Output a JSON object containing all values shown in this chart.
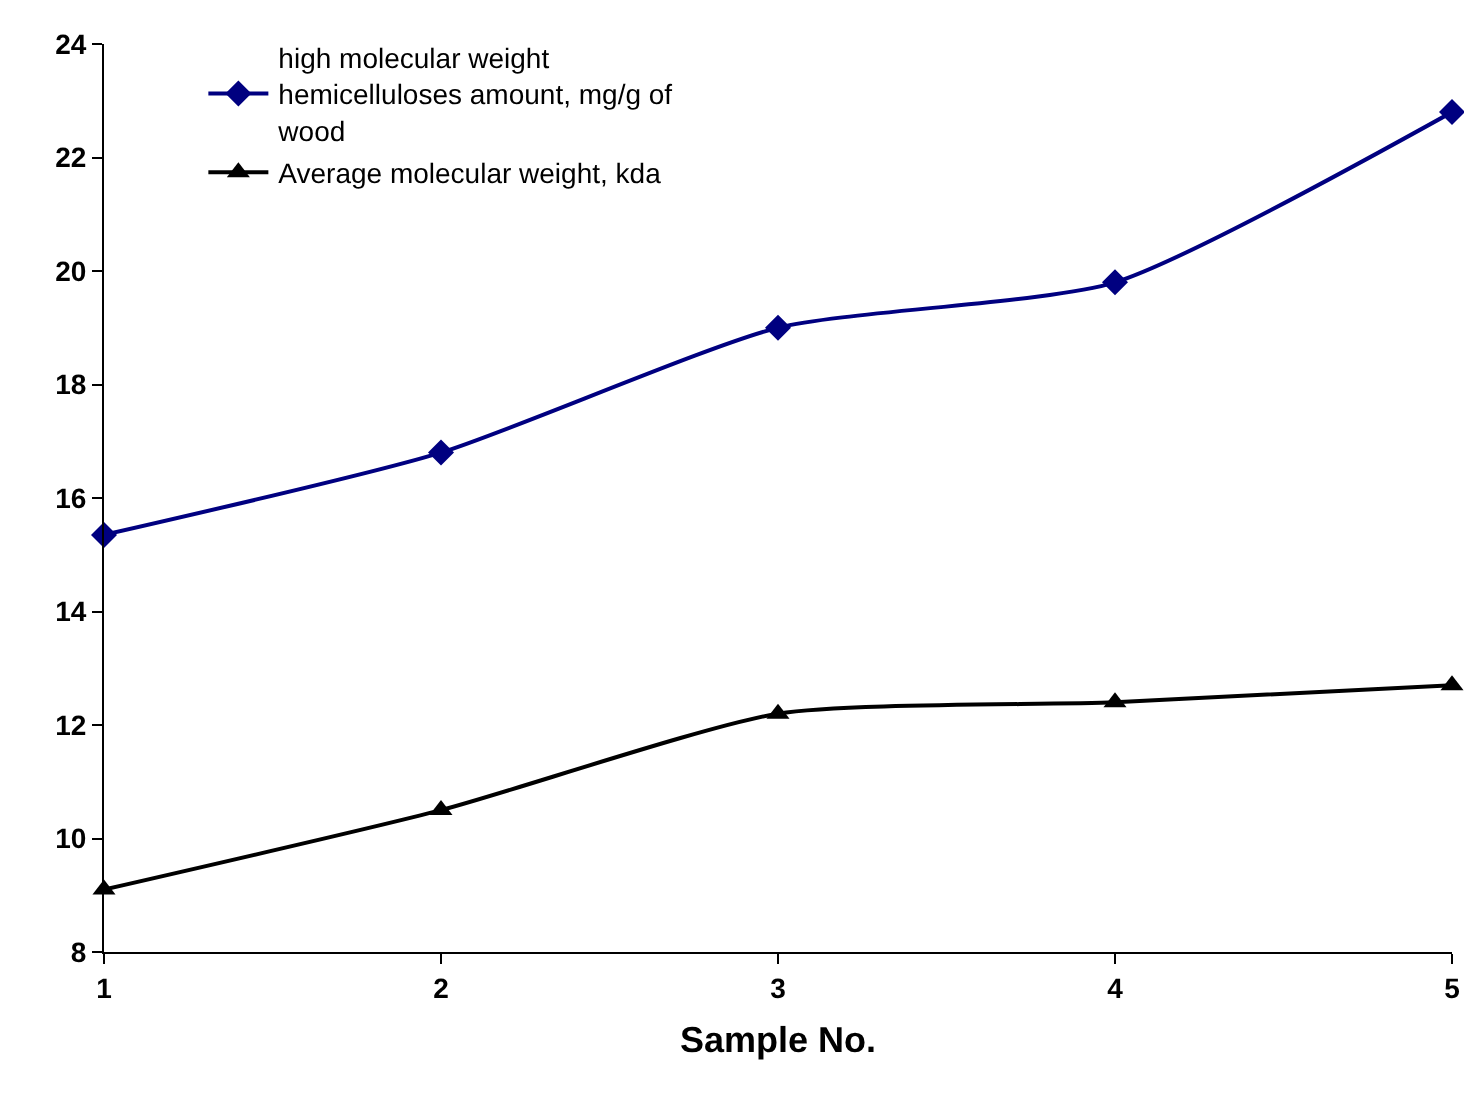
{
  "chart_data": {
    "type": "line",
    "xlabel": "Sample No.",
    "x": [
      1,
      2,
      3,
      4,
      5
    ],
    "series": [
      {
        "name": "high molecular weight hemicelluloses amount, mg/g of wood",
        "color": "#000080",
        "marker": "diamond",
        "values": [
          15.35,
          16.8,
          19.0,
          19.8,
          22.8
        ]
      },
      {
        "name": "Average molecular weight, kda",
        "color": "#000000",
        "marker": "triangle",
        "values": [
          9.1,
          10.5,
          12.2,
          12.4,
          12.7
        ]
      }
    ],
    "xlim": [
      1,
      5
    ],
    "xticks": [
      1,
      2,
      3,
      4,
      5
    ],
    "ylim": [
      8,
      24
    ],
    "yticks": [
      8,
      10,
      12,
      14,
      16,
      18,
      20,
      22,
      24
    ],
    "grid": false,
    "legend": "top left",
    "line_style": "solid"
  }
}
